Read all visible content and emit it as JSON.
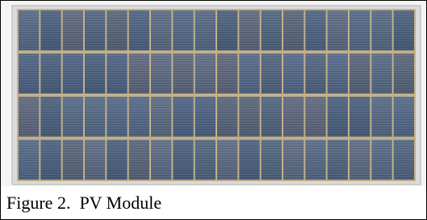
{
  "caption": "Figure 2.  PV Module"
}
